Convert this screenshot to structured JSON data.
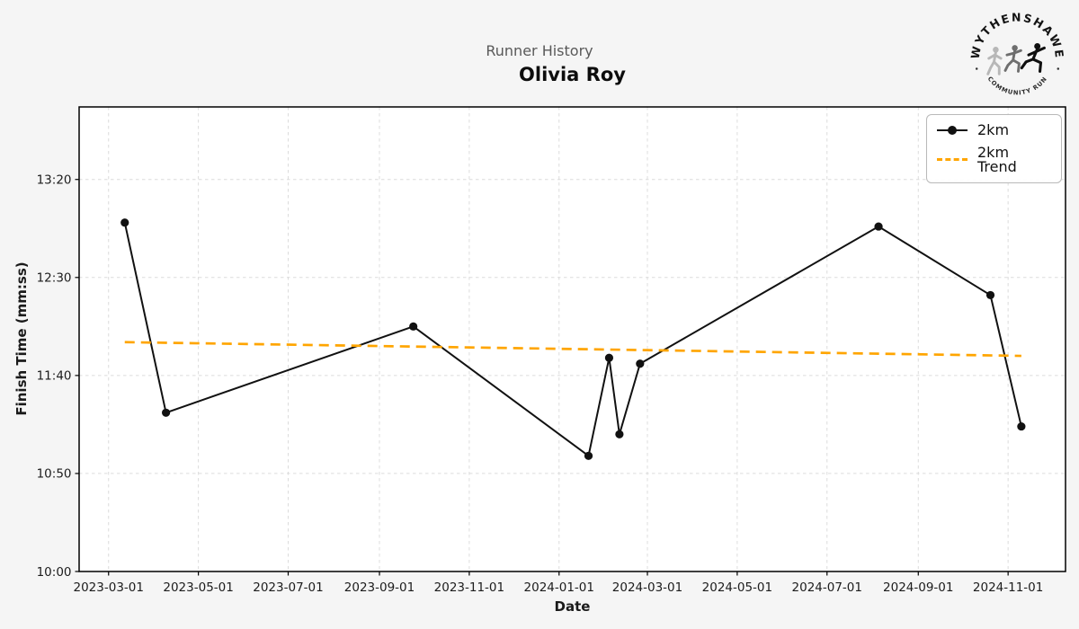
{
  "header": {
    "suptitle": "Runner History",
    "runner_name": "Olivia Roy"
  },
  "logo": {
    "arc_top_text": "WYTHENSHAWE",
    "arc_bottom_text": "COMMUNITY RUN"
  },
  "chart_data": {
    "type": "line",
    "title": "Runner History",
    "subtitle": "Olivia Roy",
    "xlabel": "Date",
    "ylabel": "Finish Time (mm:ss)",
    "grid": true,
    "legend_position": "upper right",
    "x_ticks": [
      "2023-03-01",
      "2023-05-01",
      "2023-07-01",
      "2023-09-01",
      "2023-11-01",
      "2024-01-01",
      "2024-03-01",
      "2024-05-01",
      "2024-07-01",
      "2024-09-01",
      "2024-11-01"
    ],
    "y_ticks": [
      {
        "label": "10:00",
        "seconds": 600
      },
      {
        "label": "10:50",
        "seconds": 650
      },
      {
        "label": "11:40",
        "seconds": 700
      },
      {
        "label": "12:30",
        "seconds": 750
      },
      {
        "label": "13:20",
        "seconds": 800
      }
    ],
    "xlim": [
      "2023-02-09",
      "2024-12-10"
    ],
    "ylim_seconds": [
      600,
      837
    ],
    "series": [
      {
        "name": "2km",
        "color": "#111111",
        "linestyle": "solid",
        "marker": "circle",
        "points": [
          {
            "date": "2023-03-12",
            "time": "12:58"
          },
          {
            "date": "2023-04-09",
            "time": "11:21"
          },
          {
            "date": "2023-09-24",
            "time": "12:05"
          },
          {
            "date": "2024-01-21",
            "time": "10:59"
          },
          {
            "date": "2024-02-04",
            "time": "11:49"
          },
          {
            "date": "2024-02-11",
            "time": "11:10"
          },
          {
            "date": "2024-02-25",
            "time": "11:46"
          },
          {
            "date": "2024-08-05",
            "time": "12:56"
          },
          {
            "date": "2024-10-20",
            "time": "12:21"
          },
          {
            "date": "2024-11-10",
            "time": "11:14"
          }
        ]
      },
      {
        "name": "2km Trend",
        "color": "#FFA500",
        "linestyle": "dashed",
        "marker": "none",
        "points": [
          {
            "date": "2023-03-12",
            "time": "11:57"
          },
          {
            "date": "2024-11-10",
            "time": "11:50"
          }
        ]
      }
    ]
  }
}
